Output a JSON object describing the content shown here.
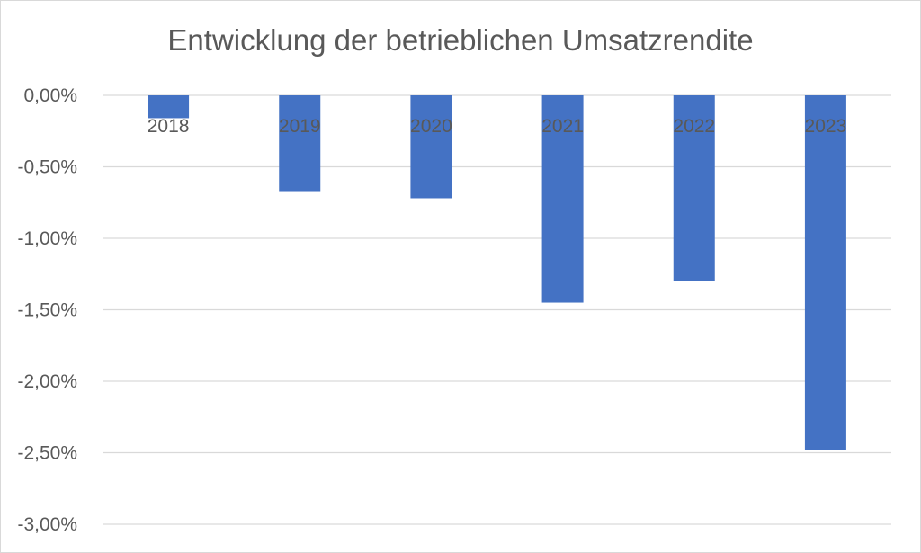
{
  "chart_data": {
    "type": "bar",
    "title": "Entwicklung der betrieblichen Umsatzrendite",
    "categories": [
      "2018",
      "2019",
      "2020",
      "2021",
      "2022",
      "2023"
    ],
    "values": [
      -0.16,
      -0.67,
      -0.72,
      -1.45,
      -1.3,
      -2.48
    ],
    "ylim": [
      -3.0,
      0.0
    ],
    "yticks": [
      0.0,
      -0.5,
      -1.0,
      -1.5,
      -2.0,
      -2.5,
      -3.0
    ],
    "ytick_labels": [
      "0,00%",
      "-0,50%",
      "-1,00%",
      "-1,50%",
      "-2,00%",
      "-2,50%",
      "-3,00%"
    ],
    "xlabel": "",
    "ylabel": "",
    "grid": true,
    "legend": "none",
    "bar_color": "#4472C4",
    "grid_color": "#D9D9D9",
    "text_color": "#595959"
  }
}
